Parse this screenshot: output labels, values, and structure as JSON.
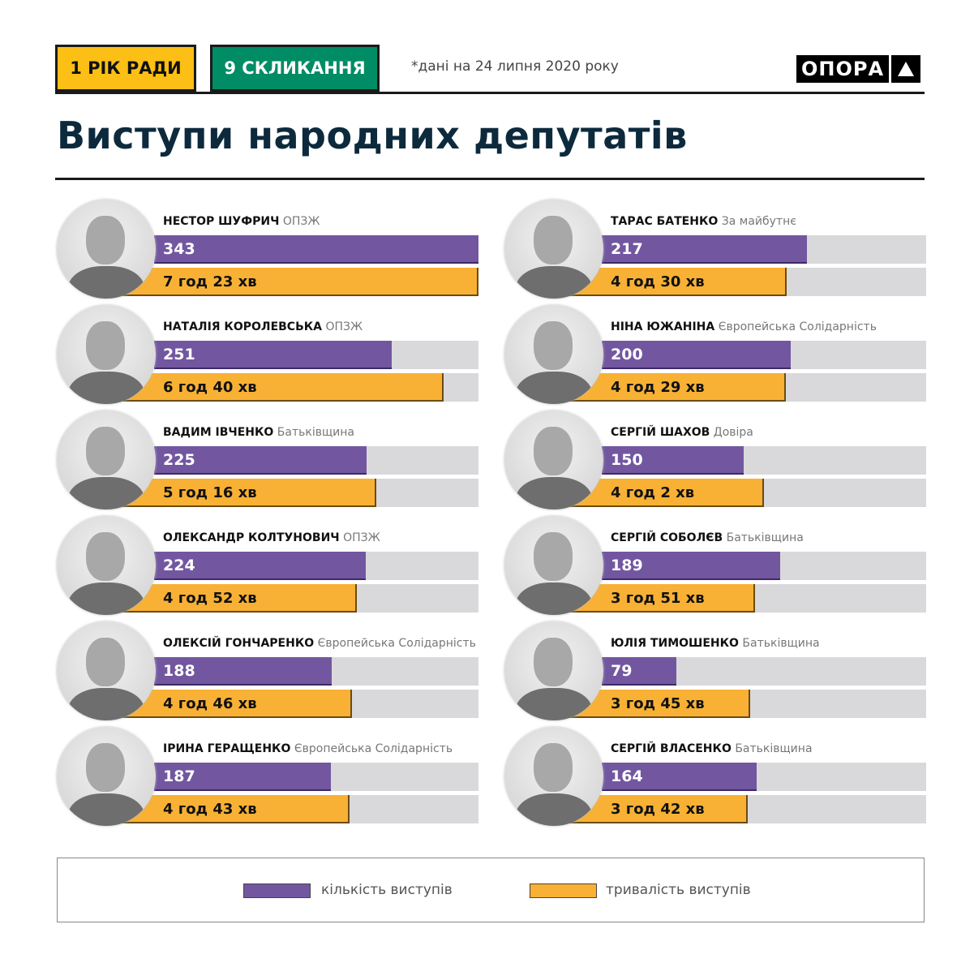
{
  "header": {
    "tag_year": "1 РІК РАДИ",
    "tag_convocation": "9 СКЛИКАННЯ",
    "note": "*дані на 24 липня 2020 року",
    "logo_text": "ОПОРА",
    "title": "Виступи народних депутатів"
  },
  "colors": {
    "count": "#7257a0",
    "duration": "#f8b134",
    "track": "#d9d9db",
    "tag_year": "#fbbf15",
    "tag_convocation": "#008c64"
  },
  "chart_data": {
    "type": "bar",
    "scale_max_count": 343,
    "scale_max_minutes": 443,
    "series": [
      {
        "name": "кількість виступів"
      },
      {
        "name": "тривалість виступів"
      }
    ],
    "columns": [
      [
        {
          "name": "НЕСТОР ШУФРИЧ",
          "party": "ОПЗЖ",
          "count": 343,
          "duration": "7 год 23 хв",
          "minutes": 443
        },
        {
          "name": "НАТАЛІЯ КОРОЛЕВСЬКА",
          "party": "ОПЗЖ",
          "count": 251,
          "duration": "6 год 40 хв",
          "minutes": 400
        },
        {
          "name": "ВАДИМ ІВЧЕНКО",
          "party": "Батьківщина",
          "count": 225,
          "duration": "5 год 16 хв",
          "minutes": 316
        },
        {
          "name": "ОЛЕКСАНДР КОЛТУНОВИЧ",
          "party": "ОПЗЖ",
          "count": 224,
          "duration": "4 год 52 хв",
          "minutes": 292
        },
        {
          "name": "ОЛЕКСІЙ ГОНЧАРЕНКО",
          "party": "Європейська Солідарність",
          "count": 188,
          "duration": "4 год 46 хв",
          "minutes": 286
        },
        {
          "name": "ІРИНА ГЕРАЩЕНКО",
          "party": "Європейська Солідарність",
          "count": 187,
          "duration": "4 год 43 хв",
          "minutes": 283
        }
      ],
      [
        {
          "name": "ТАРАС БАТЕНКО",
          "party": "За майбутнє",
          "count": 217,
          "duration": "4 год 30 хв",
          "minutes": 270
        },
        {
          "name": "НІНА ЮЖАНІНА",
          "party": "Європейська Солідарність",
          "count": 200,
          "duration": "4 год 29 хв",
          "minutes": 269
        },
        {
          "name": "СЕРГІЙ ШАХОВ",
          "party": "Довіра",
          "count": 150,
          "duration": "4 год 2 хв",
          "minutes": 242
        },
        {
          "name": "СЕРГІЙ СОБОЛЄВ",
          "party": "Батьківщина",
          "count": 189,
          "duration": "3 год 51 хв",
          "minutes": 231
        },
        {
          "name": "ЮЛІЯ ТИМОШЕНКО",
          "party": "Батьківщина",
          "count": 79,
          "duration": "3 год 45 хв",
          "minutes": 225
        },
        {
          "name": "СЕРГІЙ ВЛАСЕНКО",
          "party": "Батьківщина",
          "count": 164,
          "duration": "3 год 42 хв",
          "minutes": 222
        }
      ]
    ]
  },
  "legend": {
    "count_label": "кількість виступів",
    "duration_label": "тривалість виступів",
    "legend_position": "bottom"
  }
}
